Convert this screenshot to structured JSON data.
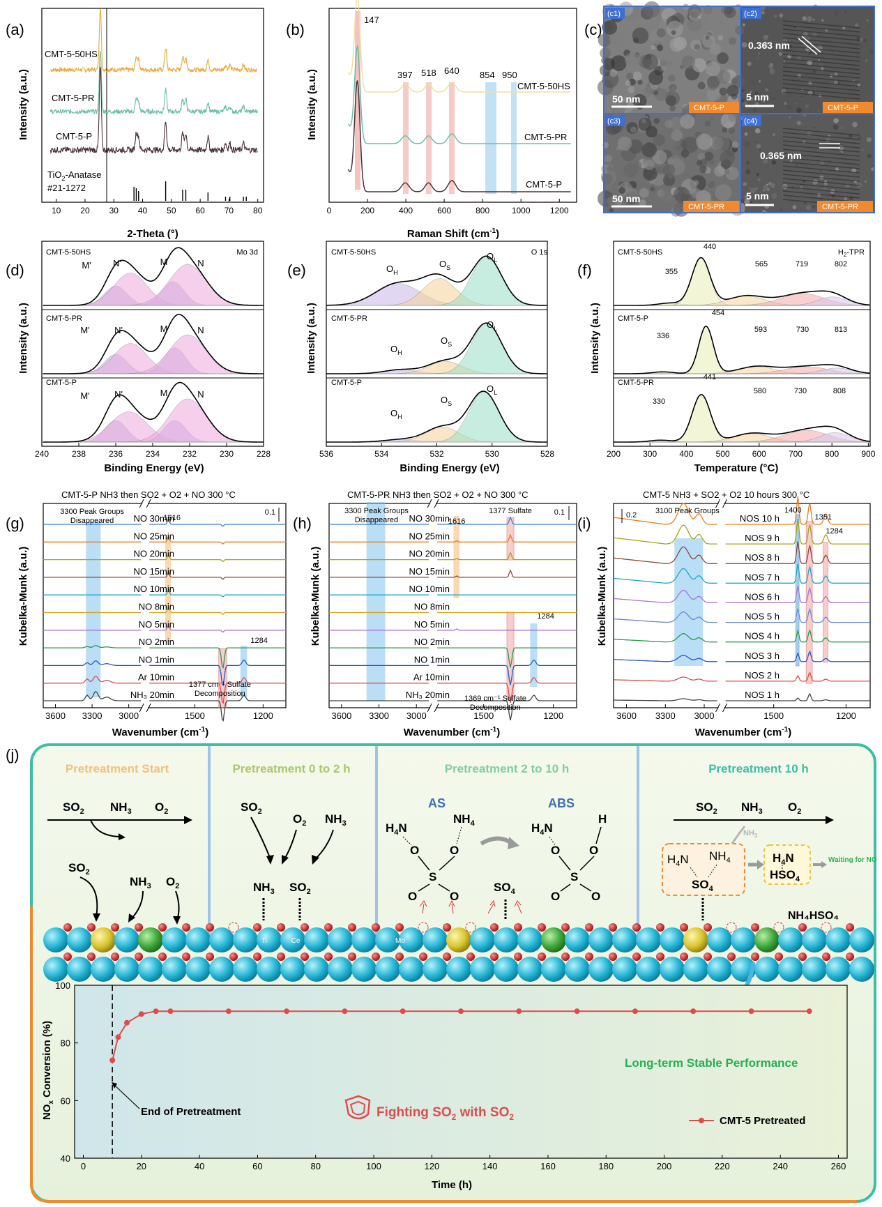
{
  "panels": {
    "a": {
      "letter": "(a)",
      "xlabel": "2-Theta (°)",
      "ylabel": "Intensity (a.u.)",
      "xticks": [
        "10",
        "20",
        "30",
        "40",
        "50",
        "60",
        "70",
        "80"
      ],
      "series": [
        "CMT-5-50HS",
        "CMT-5-PR",
        "CMT-5-P"
      ],
      "ref_label_1": "TiO",
      "ref_label_sub": "2",
      "ref_label_2": "-Anatase",
      "ref_card": "#21-1272"
    },
    "b": {
      "letter": "(b)",
      "xlabel": "Raman Shift (cm",
      "xlabel_sup": "-1",
      "xlabel_end": ")",
      "ylabel": "Intensity (a.u.)",
      "xticks": [
        "0",
        "200",
        "400",
        "600",
        "800",
        "1000",
        "1200"
      ],
      "series": [
        "CMT-5-50HS",
        "CMT-5-PR",
        "CMT-5-P"
      ],
      "peaks": [
        "147",
        "397",
        "518",
        "640",
        "854",
        "950"
      ]
    },
    "c": {
      "letter": "(c)",
      "c1": {
        "tag": "(c1)",
        "scale": "50 nm",
        "label": "CMT-5-P"
      },
      "c2": {
        "tag": "(c2)",
        "scale": "5 nm",
        "label": "CMT-5-P",
        "dspace": "0.363 nm"
      },
      "c3": {
        "tag": "(c3)",
        "scale": "50 nm",
        "label": "CMT-5-PR"
      },
      "c4": {
        "tag": "(c4)",
        "scale": "5 nm",
        "label": "CMT-5-PR",
        "dspace": "0.365 nm"
      }
    },
    "d": {
      "letter": "(d)",
      "xlabel": "Binding Energy (eV)",
      "ylabel": "Intensity (a.u.)",
      "xticks": [
        "240",
        "238",
        "236",
        "234",
        "232",
        "230",
        "228"
      ],
      "region": "Mo 3d",
      "series": [
        "CMT-5-50HS",
        "CMT-5-PR",
        "CMT-5-P"
      ],
      "peak_labels": [
        "M'",
        "N'",
        "M",
        "N"
      ]
    },
    "e": {
      "letter": "(e)",
      "xlabel": "Binding Energy (eV)",
      "ylabel": "Intensity (a.u.)",
      "xticks": [
        "536",
        "534",
        "532",
        "530",
        "528"
      ],
      "region": "O 1s",
      "series": [
        "CMT-5-50HS",
        "CMT-5-PR",
        "CMT-5-P"
      ],
      "peak_labels": [
        "O",
        "O",
        "O"
      ],
      "peak_subs": [
        "H",
        "S",
        "L"
      ]
    },
    "f": {
      "letter": "(f)",
      "xlabel": "Temperature (°C)",
      "ylabel": "Intensity (a.u.)",
      "xticks": [
        "200",
        "300",
        "400",
        "500",
        "600",
        "700",
        "800",
        "900"
      ],
      "region_1": "H",
      "region_sub": "2",
      "region_2": "-TPR",
      "series": [
        "CMT-5-50HS",
        "CMT-5-P",
        "CMT-5-PR"
      ],
      "peaks_top": [
        "355",
        "440",
        "565",
        "719",
        "802"
      ],
      "peaks_mid": [
        "336",
        "454",
        "593",
        "730",
        "813"
      ],
      "peaks_bot": [
        "330",
        "441",
        "580",
        "730",
        "808"
      ]
    },
    "g": {
      "letter": "(g)",
      "title": "CMT-5-P   NH3 then SO2 + O2 + NO   300 °C",
      "xlabel": "Wavenumber (cm",
      "ylabel": "Kubelka-Munk (a.u.)",
      "xticks": [
        "3600",
        "3300",
        "3000",
        "1500",
        "1200"
      ],
      "note_top": "3300 Peak Groups",
      "note_top2": "Disappeared",
      "scale": "0.1",
      "band_1616": "1616",
      "band_1284": "1284",
      "note_bottom": "1377 cm⁻¹ Sulfate",
      "note_bottom2": "Decomposition",
      "rows": [
        "NO 30min",
        "NO 25min",
        "NO 20min",
        "NO 15min",
        "NO 10min",
        "NO 8min",
        "NO 5min",
        "NO 2min",
        "NO 1min",
        "Ar 10min",
        "NH₃ 20min"
      ]
    },
    "h": {
      "letter": "(h)",
      "title": "CMT-5-PR   NH3 then SO2 + O2 + NO   300 °C",
      "xlabel": "Wavenumber (cm",
      "ylabel": "Kubelka-Munk (a.u.)",
      "xticks": [
        "3600",
        "3300",
        "3000",
        "1500",
        "1200"
      ],
      "note_top": "3300 Peak Groups",
      "note_top2": "Disappeared",
      "scale": "0.1",
      "band_1616": "1616",
      "band_1377": "1377 Sulfate",
      "band_1284": "1284",
      "note_bottom": "1369 cm⁻¹ Sulfate",
      "note_bottom2": "Decomposition",
      "rows": [
        "NO 30min",
        "NO 25min",
        "NO 20min",
        "NO 15min",
        "NO 10min",
        "NO 8min",
        "NO 5min",
        "NO 2min",
        "NO 1min",
        "Ar 10min",
        "NH₃ 20min"
      ]
    },
    "i": {
      "letter": "(i)",
      "title": "CMT-5   NH3 + SO2 + O2   10 hours   300 °C",
      "xlabel": "Wavenumber (cm",
      "ylabel": "Kubelka-Munk (a.u.)",
      "xticks": [
        "3600",
        "3300",
        "3000",
        "1500",
        "1200"
      ],
      "note_top": "3100 Peak Groups",
      "scale": "0.2",
      "bands": [
        "1400",
        "1351",
        "1284"
      ],
      "rows": [
        "NOS 10 h",
        "NOS 9 h",
        "NOS 8 h",
        "NOS 7 h",
        "NOS 6 h",
        "NOS 5 h",
        "NOS 4 h",
        "NOS 3 h",
        "NOS 2 h",
        "NOS 1 h"
      ]
    },
    "j": {
      "letter": "(j)",
      "stages": [
        "Pretreatment Start",
        "Pretreatment 0 to 2 h",
        "Pretreatment 2 to 10 h",
        "Pretreatment 10 h"
      ],
      "stage_colors": [
        "#f0c27a",
        "#a9d08e",
        "#7fcf9c",
        "#3cbfa3"
      ],
      "AS": "AS",
      "ABS": "ABS",
      "waiting": "Waiting for NO",
      "product": "NH₄HSO₄",
      "atom_ti": "Ti",
      "atom_ce": "Ce",
      "atom_mo": "Mo",
      "plot": {
        "ylabel": "NO",
        "ylabel_sub": "x",
        "ylabel_end": " Conversion (%)",
        "xlabel": "Time (h)",
        "xticks": [
          "0",
          "20",
          "40",
          "60",
          "80",
          "100",
          "120",
          "140",
          "160",
          "180",
          "200",
          "220",
          "240",
          "260"
        ],
        "yticks": [
          "40",
          "60",
          "80",
          "100"
        ],
        "end_label": "End of Pretreatment",
        "slogan": "Fighting SO",
        "slogan_sub": "2",
        "slogan_end": " with SO",
        "slogan_sub2": "2",
        "stable": "Long-term Stable Performance",
        "legend": "CMT-5 Pretreated"
      }
    }
  },
  "chart_data": [
    {
      "type": "line",
      "title": "",
      "xlabel": "Time (h)",
      "ylabel": "NOx Conversion (%)",
      "xlim": [
        0,
        260
      ],
      "ylim": [
        40,
        100
      ],
      "series": [
        {
          "name": "CMT-5 Pretreated",
          "x": [
            10,
            12,
            15,
            20,
            25,
            30,
            50,
            70,
            90,
            110,
            130,
            150,
            170,
            190,
            210,
            230,
            250
          ],
          "y": [
            74,
            82,
            87,
            90,
            91,
            91,
            91,
            91,
            91,
            91,
            91,
            91,
            91,
            91,
            91,
            91,
            91
          ]
        }
      ],
      "color": "#e04b4b"
    }
  ]
}
